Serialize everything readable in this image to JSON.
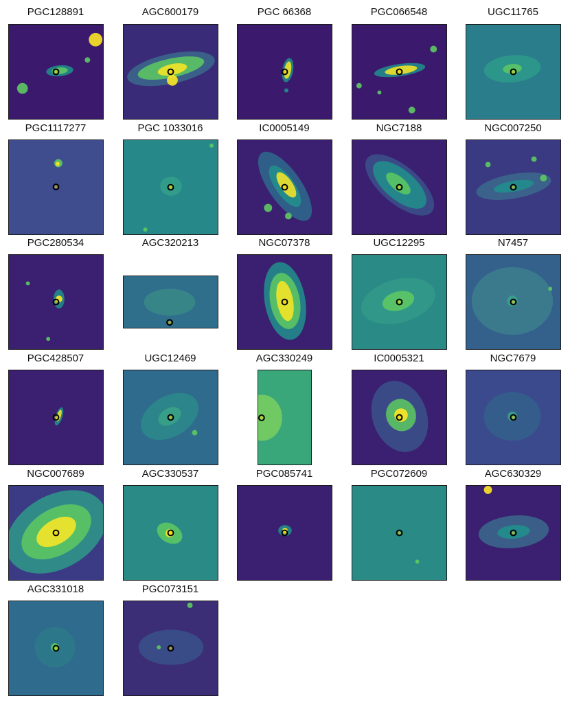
{
  "figure": {
    "marker_color": "#000000",
    "marker_fill": "#ffd400",
    "palette": [
      "#440154",
      "#3b528b",
      "#21918c",
      "#5ec962",
      "#fde725"
    ],
    "panels": [
      {
        "name": "PGC128891",
        "bg": "#3b1a6e"
      },
      {
        "name": "AGC600179",
        "bg": "#3a2b78"
      },
      {
        "name": "PGC 66368",
        "bg": "#3b1a6e"
      },
      {
        "name": "PGC066548",
        "bg": "#3b1a6e"
      },
      {
        "name": "UGC11765",
        "bg": "#2a7d8a"
      },
      {
        "name": "PGC1117277",
        "bg": "#3f4d8e"
      },
      {
        "name": "PGC 1033016",
        "bg": "#27888a"
      },
      {
        "name": "IC0005149",
        "bg": "#3b1f70"
      },
      {
        "name": "NGC7188",
        "bg": "#3b1f70"
      },
      {
        "name": "NGC007250",
        "bg": "#3a3a83"
      },
      {
        "name": "PGC280534",
        "bg": "#3b1f70"
      },
      {
        "name": "AGC320213",
        "bg": "#2f6f8c"
      },
      {
        "name": "NGC07378",
        "bg": "#3b1f70"
      },
      {
        "name": "UGC12295",
        "bg": "#2a8a86"
      },
      {
        "name": "N7457",
        "bg": "#34608c"
      },
      {
        "name": "PGC428507",
        "bg": "#3b1f70"
      },
      {
        "name": "UGC12469",
        "bg": "#2f6b8d"
      },
      {
        "name": "AGC330249",
        "bg": "#3aa77a"
      },
      {
        "name": "IC0005321",
        "bg": "#3b1f70"
      },
      {
        "name": "NGC7679",
        "bg": "#3b4a8d"
      },
      {
        "name": "NGC007689",
        "bg": "#3b3a84"
      },
      {
        "name": "AGC330537",
        "bg": "#2a8a86"
      },
      {
        "name": "PGC085741",
        "bg": "#3b1f70"
      },
      {
        "name": "PGC072609",
        "bg": "#2a8a86"
      },
      {
        "name": "AGC630329",
        "bg": "#3b1f70"
      },
      {
        "name": "AGC331018",
        "bg": "#2f6b8d"
      },
      {
        "name": "PGC073151",
        "bg": "#3b2d76"
      }
    ]
  }
}
